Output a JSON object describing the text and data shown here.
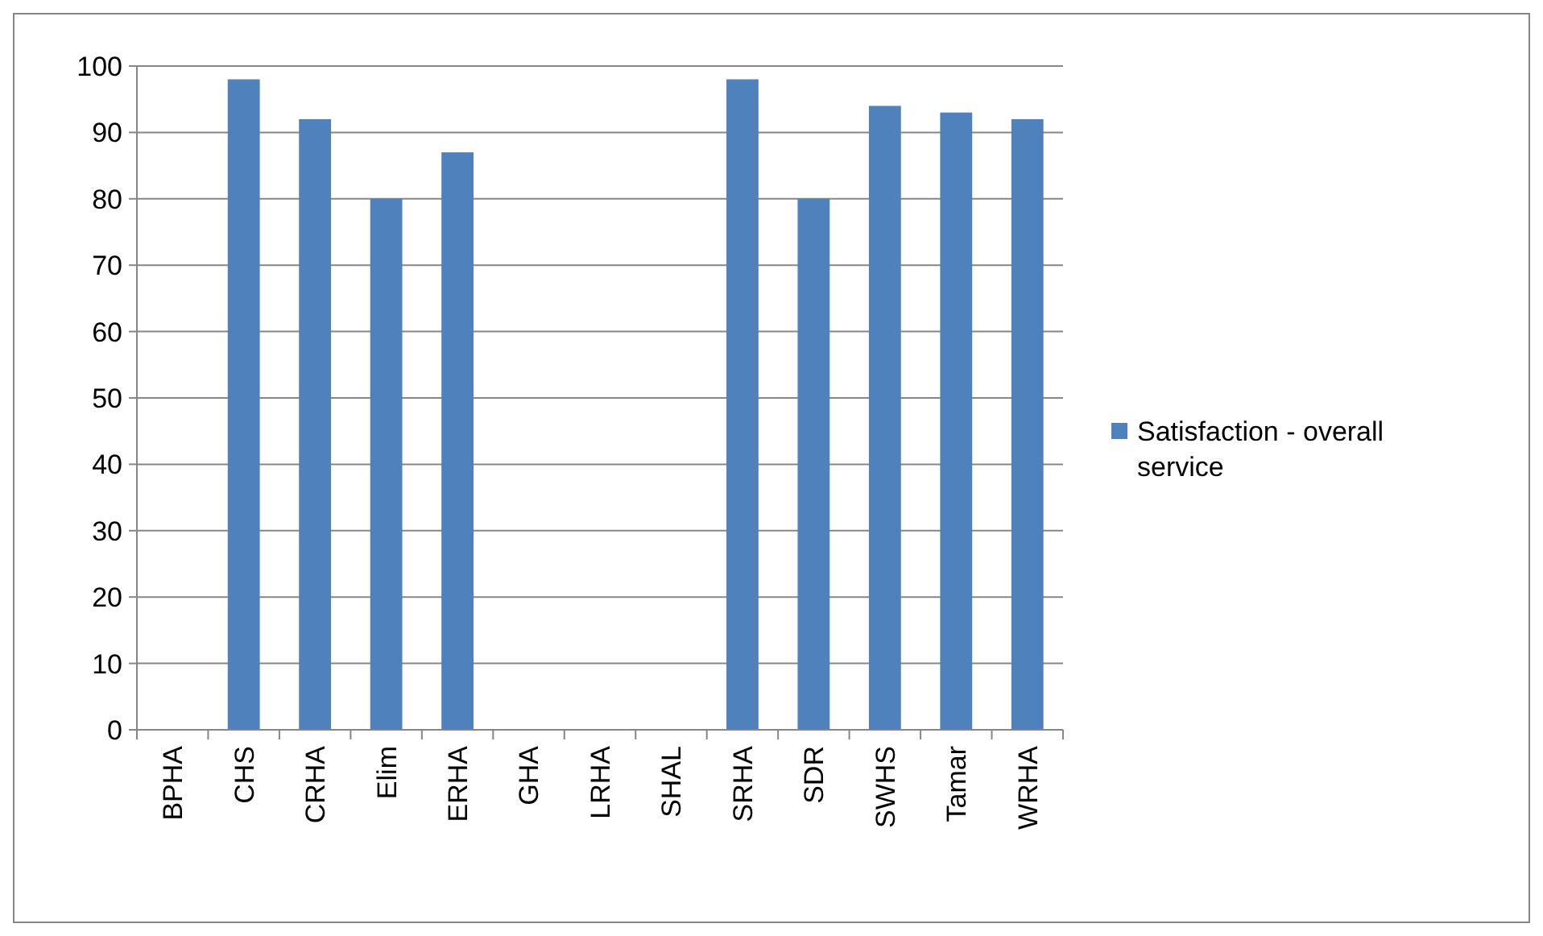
{
  "chart_data": {
    "type": "bar",
    "categories": [
      "BPHA",
      "CHS",
      "CRHA",
      "Elim",
      "ERHA",
      "GHA",
      "LRHA",
      "SHAL",
      "SRHA",
      "SDR",
      "SWHS",
      "Tamar",
      "WRHA"
    ],
    "series": [
      {
        "name": "Satisfaction - overall service",
        "color": "#4f81bd",
        "values": [
          null,
          98,
          92,
          80,
          87,
          null,
          null,
          null,
          98,
          80,
          94,
          93,
          92
        ]
      }
    ],
    "ylim": [
      0,
      100
    ],
    "yticks": [
      0,
      10,
      20,
      30,
      40,
      50,
      60,
      70,
      80,
      90,
      100
    ],
    "grid": "y",
    "legend": "right"
  }
}
